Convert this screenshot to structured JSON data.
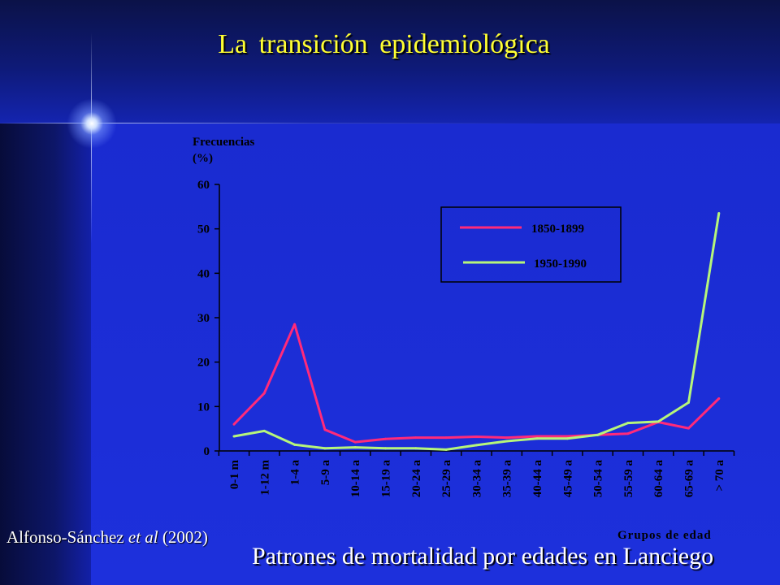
{
  "slide": {
    "title": "La transición epidemiológica",
    "citation_author": "Alfonso-Sánchez",
    "citation_etal": "et al",
    "citation_year": "(2002)",
    "caption": "Patrones de mortalidad por edades en Lanciego"
  },
  "colors": {
    "title": "#ffff33",
    "series_1850": "#ff2a7a",
    "series_1950": "#b6f57a",
    "chart_text": "#000000",
    "legend_border": "#000000"
  },
  "chart_data": {
    "type": "line",
    "ylabel_line1": "Frecuencias",
    "ylabel_line2": "(%)",
    "xlabel": "Grupos de edad",
    "ylim": [
      0,
      60
    ],
    "yticks": [
      0,
      10,
      20,
      30,
      40,
      50,
      60
    ],
    "grid": false,
    "legend_position": "top-right",
    "categories": [
      "0-1 m",
      "1-12 m",
      "1-4 a",
      "5-9 a",
      "10-14 a",
      "15-19 a",
      "20-24 a",
      "25-29 a",
      "30-34 a",
      "35-39 a",
      "40-44 a",
      "45-49 a",
      "50-54 a",
      "55-59 a",
      "60-64 a",
      "65-69 a",
      "> 70 a"
    ],
    "series": [
      {
        "name": "1850-1899",
        "color": "#ff2a7a",
        "values": [
          6,
          13,
          28.5,
          4.8,
          2,
          2.7,
          3,
          3,
          3.2,
          3,
          3.3,
          3.3,
          3.6,
          3.9,
          6.5,
          5.1,
          11.8
        ]
      },
      {
        "name": "1950-1990",
        "color": "#b6f57a",
        "values": [
          3.3,
          4.5,
          1.4,
          0.6,
          0.8,
          0.6,
          0.6,
          0.3,
          1.3,
          2.2,
          2.8,
          2.8,
          3.6,
          6.3,
          6.6,
          10.9,
          53.5
        ]
      }
    ]
  }
}
